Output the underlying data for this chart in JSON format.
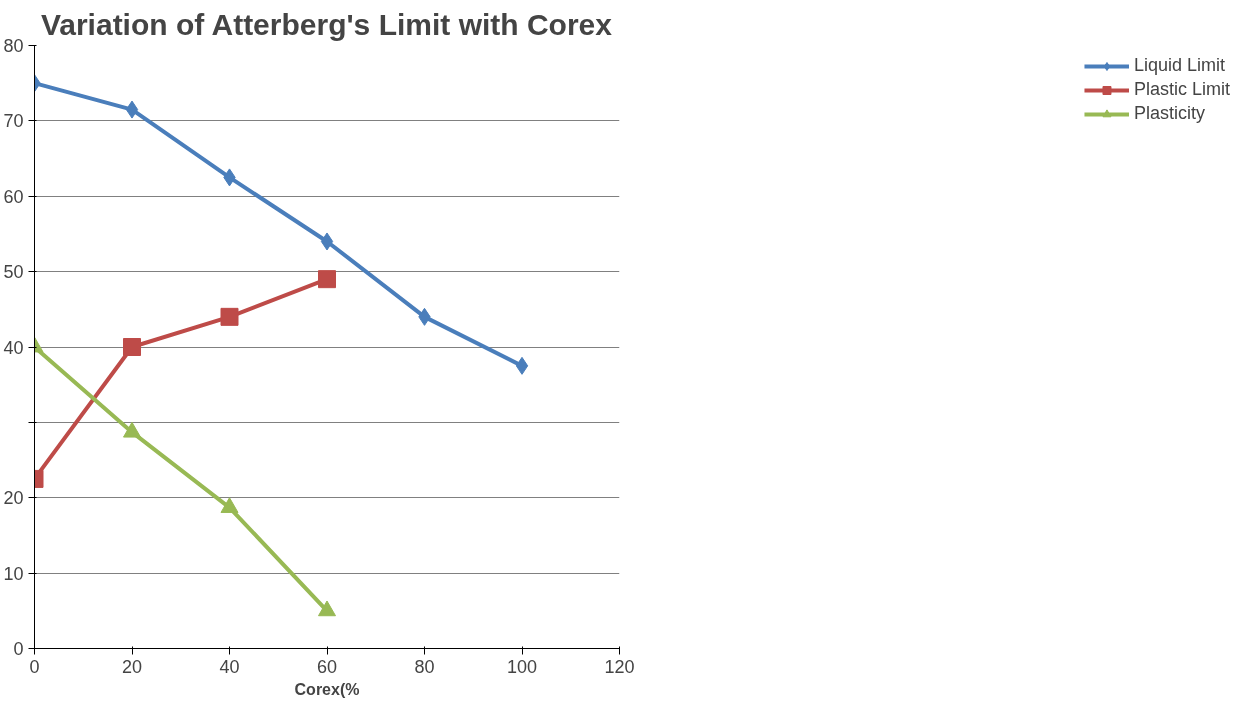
{
  "chart_data": {
    "type": "line",
    "title": "Variation of Atterberg's Limit with Corex",
    "xlabel": "Corex(%",
    "xlim": [
      0,
      120
    ],
    "xticks": [
      0,
      20,
      40,
      60,
      80,
      100,
      120
    ],
    "ylim": [
      0,
      80
    ],
    "yticks": [
      0,
      10,
      20,
      {
        "value": 30,
        "label": null
      },
      40,
      50,
      60,
      70,
      80
    ],
    "grid": "y",
    "legend": "right",
    "line_style": "solid",
    "series": [
      {
        "name": "Liquid Limit",
        "color": "#4a7ebb",
        "marker": "diamond",
        "x": [
          0,
          20,
          40,
          60,
          80,
          100
        ],
        "values": [
          75,
          71.5,
          62.5,
          54,
          44,
          37.5
        ]
      },
      {
        "name": "Plastic Limit",
        "color": "#be4b48",
        "marker": "square",
        "x": [
          0,
          20,
          40,
          60
        ],
        "values": [
          22.5,
          40,
          44,
          49
        ]
      },
      {
        "name": "Plasticity",
        "color": "#98b954",
        "marker": "triangle",
        "x": [
          0,
          20,
          40,
          60
        ],
        "values": [
          40,
          28.7,
          18.7,
          5
        ]
      }
    ]
  }
}
